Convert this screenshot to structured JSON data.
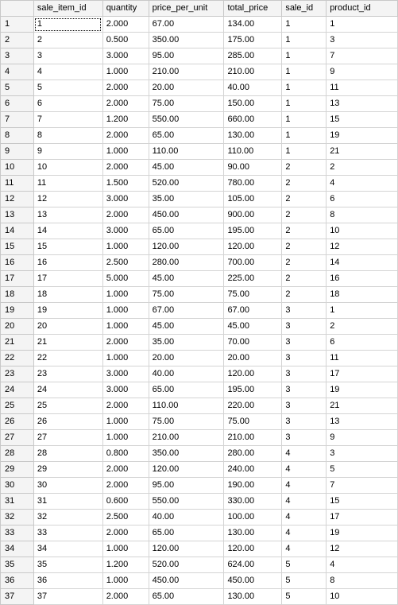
{
  "grid": {
    "columns": [
      "sale_item_id",
      "quantity",
      "price_per_unit",
      "total_price",
      "sale_id",
      "product_id"
    ],
    "rows": [
      [
        "1",
        "1",
        "2.000",
        "67.00",
        "134.00",
        "1",
        "1"
      ],
      [
        "2",
        "2",
        "0.500",
        "350.00",
        "175.00",
        "1",
        "3"
      ],
      [
        "3",
        "3",
        "3.000",
        "95.00",
        "285.00",
        "1",
        "7"
      ],
      [
        "4",
        "4",
        "1.000",
        "210.00",
        "210.00",
        "1",
        "9"
      ],
      [
        "5",
        "5",
        "2.000",
        "20.00",
        "40.00",
        "1",
        "11"
      ],
      [
        "6",
        "6",
        "2.000",
        "75.00",
        "150.00",
        "1",
        "13"
      ],
      [
        "7",
        "7",
        "1.200",
        "550.00",
        "660.00",
        "1",
        "15"
      ],
      [
        "8",
        "8",
        "2.000",
        "65.00",
        "130.00",
        "1",
        "19"
      ],
      [
        "9",
        "9",
        "1.000",
        "110.00",
        "110.00",
        "1",
        "21"
      ],
      [
        "10",
        "10",
        "2.000",
        "45.00",
        "90.00",
        "2",
        "2"
      ],
      [
        "11",
        "11",
        "1.500",
        "520.00",
        "780.00",
        "2",
        "4"
      ],
      [
        "12",
        "12",
        "3.000",
        "35.00",
        "105.00",
        "2",
        "6"
      ],
      [
        "13",
        "13",
        "2.000",
        "450.00",
        "900.00",
        "2",
        "8"
      ],
      [
        "14",
        "14",
        "3.000",
        "65.00",
        "195.00",
        "2",
        "10"
      ],
      [
        "15",
        "15",
        "1.000",
        "120.00",
        "120.00",
        "2",
        "12"
      ],
      [
        "16",
        "16",
        "2.500",
        "280.00",
        "700.00",
        "2",
        "14"
      ],
      [
        "17",
        "17",
        "5.000",
        "45.00",
        "225.00",
        "2",
        "16"
      ],
      [
        "18",
        "18",
        "1.000",
        "75.00",
        "75.00",
        "2",
        "18"
      ],
      [
        "19",
        "19",
        "1.000",
        "67.00",
        "67.00",
        "3",
        "1"
      ],
      [
        "20",
        "20",
        "1.000",
        "45.00",
        "45.00",
        "3",
        "2"
      ],
      [
        "21",
        "21",
        "2.000",
        "35.00",
        "70.00",
        "3",
        "6"
      ],
      [
        "22",
        "22",
        "1.000",
        "20.00",
        "20.00",
        "3",
        "11"
      ],
      [
        "23",
        "23",
        "3.000",
        "40.00",
        "120.00",
        "3",
        "17"
      ],
      [
        "24",
        "24",
        "3.000",
        "65.00",
        "195.00",
        "3",
        "19"
      ],
      [
        "25",
        "25",
        "2.000",
        "110.00",
        "220.00",
        "3",
        "21"
      ],
      [
        "26",
        "26",
        "1.000",
        "75.00",
        "75.00",
        "3",
        "13"
      ],
      [
        "27",
        "27",
        "1.000",
        "210.00",
        "210.00",
        "3",
        "9"
      ],
      [
        "28",
        "28",
        "0.800",
        "350.00",
        "280.00",
        "4",
        "3"
      ],
      [
        "29",
        "29",
        "2.000",
        "120.00",
        "240.00",
        "4",
        "5"
      ],
      [
        "30",
        "30",
        "2.000",
        "95.00",
        "190.00",
        "4",
        "7"
      ],
      [
        "31",
        "31",
        "0.600",
        "550.00",
        "330.00",
        "4",
        "15"
      ],
      [
        "32",
        "32",
        "2.500",
        "40.00",
        "100.00",
        "4",
        "17"
      ],
      [
        "33",
        "33",
        "2.000",
        "65.00",
        "130.00",
        "4",
        "19"
      ],
      [
        "34",
        "34",
        "1.000",
        "120.00",
        "120.00",
        "4",
        "12"
      ],
      [
        "35",
        "35",
        "1.200",
        "520.00",
        "624.00",
        "5",
        "4"
      ],
      [
        "36",
        "36",
        "1.000",
        "450.00",
        "450.00",
        "5",
        "8"
      ],
      [
        "37",
        "37",
        "2.000",
        "65.00",
        "130.00",
        "5",
        "10"
      ]
    ]
  }
}
